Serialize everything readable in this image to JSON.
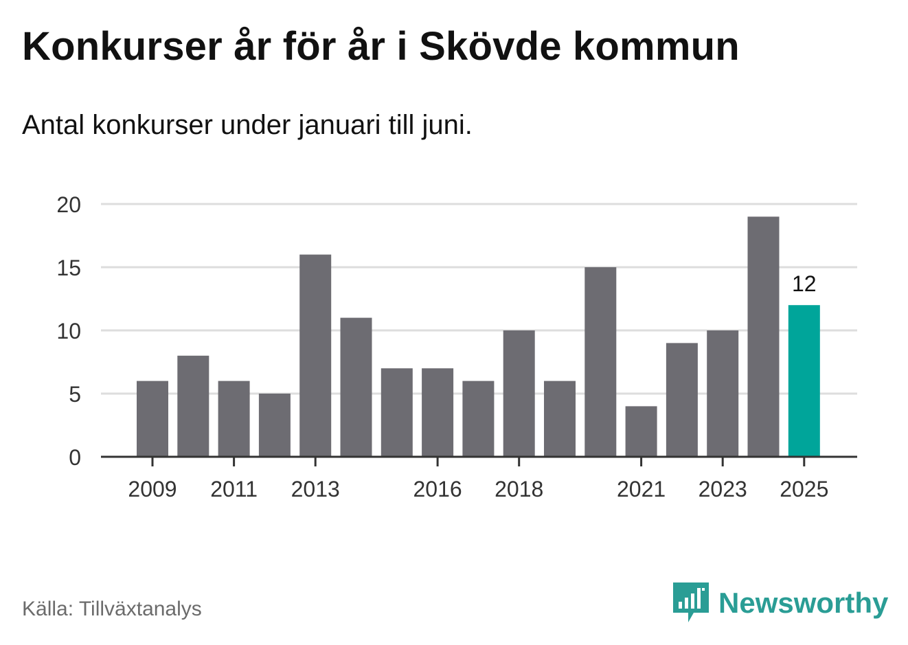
{
  "title": "Konkurser år för år i Skövde kommun",
  "subtitle": "Antal konkurser under januari till juni.",
  "source": "Källa: Tillväxtanalys",
  "brand": "Newsworthy",
  "colors": {
    "bar": "#6d6c72",
    "highlight": "#00a59a",
    "grid": "#dddddd",
    "axis": "#333333",
    "brand": "#2a9d95"
  },
  "chart_data": {
    "type": "bar",
    "categories": [
      "2009",
      "2010",
      "2011",
      "2012",
      "2013",
      "2014",
      "2015",
      "2016",
      "2017",
      "2018",
      "2019",
      "2020",
      "2021",
      "2022",
      "2023",
      "2024",
      "2025"
    ],
    "values": [
      6,
      8,
      6,
      5,
      16,
      11,
      7,
      7,
      6,
      10,
      6,
      15,
      4,
      9,
      10,
      19,
      12
    ],
    "tick_labels_x": [
      "2009",
      "2011",
      "2013",
      "2016",
      "2018",
      "2021",
      "2023",
      "2025"
    ],
    "yticks": [
      0,
      5,
      10,
      15,
      20
    ],
    "ylim": [
      0,
      20
    ],
    "highlight": {
      "category": "2025",
      "label": "12"
    },
    "grid": true
  }
}
